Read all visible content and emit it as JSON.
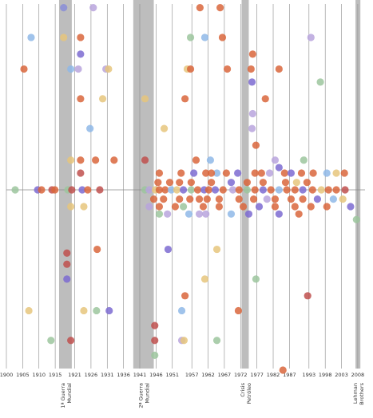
{
  "chart_data": {
    "type": "scatter",
    "xlim": [
      1900,
      2009
    ],
    "ylim": [
      -10,
      10
    ],
    "xticks": [
      1900,
      1905,
      1910,
      1915,
      1921,
      1926,
      1931,
      1936,
      1941,
      1946,
      1951,
      1957,
      1962,
      1967,
      1972,
      1977,
      1982,
      1987,
      1993,
      1998,
      2003,
      2008
    ],
    "grid": true,
    "baseline": 0,
    "bands": [
      {
        "from": 1916.2,
        "to": 1920.1,
        "label": [
          "1ª Guerra",
          "Mundial"
        ]
      },
      {
        "from": 1939.0,
        "to": 1945.3,
        "label": [
          "2ª Guerra",
          "Mundial"
        ]
      },
      {
        "from": 1972.3,
        "to": 1974.5,
        "label": [
          "Crisis",
          "Petróleo"
        ]
      },
      {
        "from": 2007.3,
        "to": 2008.8,
        "label": [
          "Lehman",
          "Brothers"
        ]
      }
    ],
    "points": [
      {
        "x": 1917.6,
        "y": 9.8,
        "color": "#8a8ed8"
      },
      {
        "x": 1926.7,
        "y": 9.8,
        "color": "#b8a4dd"
      },
      {
        "x": 1959.5,
        "y": 9.8,
        "color": "#d9663c"
      },
      {
        "x": 1965.7,
        "y": 9.8,
        "color": "#d9663c"
      },
      {
        "x": 1907.6,
        "y": 8.2,
        "color": "#8fb8e8"
      },
      {
        "x": 1917.6,
        "y": 8.2,
        "color": "#e6c57d"
      },
      {
        "x": 1922.8,
        "y": 8.2,
        "color": "#d9663c"
      },
      {
        "x": 1956.6,
        "y": 8.2,
        "color": "#9cc59e"
      },
      {
        "x": 1961.0,
        "y": 8.2,
        "color": "#8fb8e8"
      },
      {
        "x": 1966.4,
        "y": 8.2,
        "color": "#d9663c"
      },
      {
        "x": 1993.6,
        "y": 8.2,
        "color": "#b8a4dd"
      },
      {
        "x": 1922.8,
        "y": 7.3,
        "color": "#7d6bd1"
      },
      {
        "x": 1975.7,
        "y": 7.3,
        "color": "#d9663c"
      },
      {
        "x": 1905.4,
        "y": 6.5,
        "color": "#d9663c"
      },
      {
        "x": 1919.8,
        "y": 6.5,
        "color": "#8fb8e8"
      },
      {
        "x": 1922.1,
        "y": 6.5,
        "color": "#b8a4dd"
      },
      {
        "x": 1930.6,
        "y": 6.5,
        "color": "#b8a4dd"
      },
      {
        "x": 1931.4,
        "y": 6.5,
        "color": "#e6c57d"
      },
      {
        "x": 1955.6,
        "y": 6.5,
        "color": "#e6c57d"
      },
      {
        "x": 1956.6,
        "y": 6.5,
        "color": "#d9663c"
      },
      {
        "x": 1967.9,
        "y": 6.5,
        "color": "#d9663c"
      },
      {
        "x": 1975.2,
        "y": 6.5,
        "color": "#d9663c"
      },
      {
        "x": 1983.8,
        "y": 6.5,
        "color": "#d9663c"
      },
      {
        "x": 1975.5,
        "y": 5.8,
        "color": "#7d6bd1"
      },
      {
        "x": 1996.5,
        "y": 5.8,
        "color": "#9cc59e"
      },
      {
        "x": 1922.8,
        "y": 4.9,
        "color": "#d9663c"
      },
      {
        "x": 1929.6,
        "y": 4.9,
        "color": "#e6c57d"
      },
      {
        "x": 1942.6,
        "y": 4.9,
        "color": "#e6c57d"
      },
      {
        "x": 1954.9,
        "y": 4.9,
        "color": "#d9663c"
      },
      {
        "x": 1979.6,
        "y": 4.9,
        "color": "#d9663c"
      },
      {
        "x": 1975.7,
        "y": 4.1,
        "color": "#b8a4dd"
      },
      {
        "x": 1925.7,
        "y": 3.3,
        "color": "#8fb8e8"
      },
      {
        "x": 1948.5,
        "y": 3.3,
        "color": "#e6c57d"
      },
      {
        "x": 1975.5,
        "y": 3.3,
        "color": "#b8a4dd"
      },
      {
        "x": 1976.7,
        "y": 2.4,
        "color": "#d9663c"
      },
      {
        "x": 1919.8,
        "y": 1.6,
        "color": "#e6c57d"
      },
      {
        "x": 1922.8,
        "y": 1.6,
        "color": "#d9663c"
      },
      {
        "x": 1927.4,
        "y": 1.6,
        "color": "#d9663c"
      },
      {
        "x": 1933.1,
        "y": 1.6,
        "color": "#d9663c"
      },
      {
        "x": 1942.6,
        "y": 1.6,
        "color": "#c0504d"
      },
      {
        "x": 1958.3,
        "y": 1.6,
        "color": "#d9663c"
      },
      {
        "x": 1962.7,
        "y": 1.6,
        "color": "#8fb8e8"
      },
      {
        "x": 1982.6,
        "y": 1.6,
        "color": "#b8a4dd"
      },
      {
        "x": 1991.4,
        "y": 1.6,
        "color": "#9cc59e"
      },
      {
        "x": 1983.8,
        "y": 1.2,
        "color": "#7d6bd1"
      },
      {
        "x": 1922.8,
        "y": 0.9,
        "color": "#c0504d"
      },
      {
        "x": 1957.6,
        "y": 0.9,
        "color": "#7d6bd1"
      },
      {
        "x": 1964.7,
        "y": 0.9,
        "color": "#8fb8e8"
      },
      {
        "x": 1967.6,
        "y": 0.9,
        "color": "#d9663c"
      },
      {
        "x": 1971.1,
        "y": 0.9,
        "color": "#7d6bd1"
      },
      {
        "x": 1976.4,
        "y": 0.9,
        "color": "#d9663c"
      },
      {
        "x": 1978.4,
        "y": 0.9,
        "color": "#d9663c"
      },
      {
        "x": 1980.9,
        "y": 0.9,
        "color": "#b8a4dd"
      },
      {
        "x": 1985.5,
        "y": 0.9,
        "color": "#d9663c"
      },
      {
        "x": 1987.5,
        "y": 0.9,
        "color": "#7d6bd1"
      },
      {
        "x": 1990.7,
        "y": 0.9,
        "color": "#d9663c"
      },
      {
        "x": 1994.3,
        "y": 0.9,
        "color": "#d9663c"
      },
      {
        "x": 1998.5,
        "y": 0.9,
        "color": "#8fb8e8"
      },
      {
        "x": 2001.4,
        "y": 0.9,
        "color": "#e6c57d"
      },
      {
        "x": 2003.9,
        "y": 0.9,
        "color": "#d9663c"
      },
      {
        "x": 1961.3,
        "y": 0.9,
        "color": "#d9663c"
      },
      {
        "x": 1963.0,
        "y": 0.9,
        "color": "#d9663c"
      },
      {
        "x": 1947.0,
        "y": 0.9,
        "color": "#d9663c"
      },
      {
        "x": 1953.7,
        "y": 0.9,
        "color": "#d9663c"
      },
      {
        "x": 1946.6,
        "y": 0.4,
        "color": "#d9663c"
      },
      {
        "x": 1950.2,
        "y": 0.4,
        "color": "#d9663c"
      },
      {
        "x": 1953.2,
        "y": 0.4,
        "color": "#d9663c"
      },
      {
        "x": 1956.8,
        "y": 0.4,
        "color": "#d9663c"
      },
      {
        "x": 1963.0,
        "y": 0.4,
        "color": "#d9663c"
      },
      {
        "x": 1969.1,
        "y": 0.4,
        "color": "#7d6bd1"
      },
      {
        "x": 1974.0,
        "y": 0.4,
        "color": "#d9663c"
      },
      {
        "x": 1978.9,
        "y": 0.4,
        "color": "#d9663c"
      },
      {
        "x": 1985.8,
        "y": 0.4,
        "color": "#d9663c"
      },
      {
        "x": 1989.2,
        "y": 0.4,
        "color": "#e6c57d"
      },
      {
        "x": 1992.4,
        "y": 0.4,
        "color": "#d9663c"
      },
      {
        "x": 1902.7,
        "y": 0,
        "color": "#9cc59e"
      },
      {
        "x": 1909.6,
        "y": 0,
        "color": "#7d6bd1"
      },
      {
        "x": 1910.8,
        "y": 0,
        "color": "#d9663c"
      },
      {
        "x": 1914.0,
        "y": 0,
        "color": "#c0504d"
      },
      {
        "x": 1914.9,
        "y": 0,
        "color": "#d9663c"
      },
      {
        "x": 1918.9,
        "y": 0,
        "color": "#9cc59e"
      },
      {
        "x": 1920.1,
        "y": 0,
        "color": "#c0504d"
      },
      {
        "x": 1923.3,
        "y": 0,
        "color": "#7d6bd1"
      },
      {
        "x": 1925.0,
        "y": 0,
        "color": "#d9663c"
      },
      {
        "x": 1928.7,
        "y": 0,
        "color": "#c0504d"
      },
      {
        "x": 1942.6,
        "y": 0,
        "color": "#9cc59e"
      },
      {
        "x": 1943.9,
        "y": 0,
        "color": "#b8a4dd"
      },
      {
        "x": 1945.8,
        "y": 0,
        "color": "#e6c57d"
      },
      {
        "x": 1947.0,
        "y": 0,
        "color": "#d9663c"
      },
      {
        "x": 1948.8,
        "y": 0,
        "color": "#d9663c"
      },
      {
        "x": 1950.7,
        "y": 0,
        "color": "#8fb8e8"
      },
      {
        "x": 1952.4,
        "y": 0,
        "color": "#e6c57d"
      },
      {
        "x": 1954.4,
        "y": 0,
        "color": "#7d6bd1"
      },
      {
        "x": 1956.8,
        "y": 0,
        "color": "#9cc59e"
      },
      {
        "x": 1958.8,
        "y": 0,
        "color": "#d9663c"
      },
      {
        "x": 1960.8,
        "y": 0,
        "color": "#7d6bd1"
      },
      {
        "x": 1962.2,
        "y": 0,
        "color": "#d9663c"
      },
      {
        "x": 1964.2,
        "y": 0,
        "color": "#7d6bd1"
      },
      {
        "x": 1966.6,
        "y": 0,
        "color": "#d9663c"
      },
      {
        "x": 1969.6,
        "y": 0,
        "color": "#b8a4dd"
      },
      {
        "x": 1971.5,
        "y": 0,
        "color": "#d9663c"
      },
      {
        "x": 1974.0,
        "y": 0,
        "color": "#9cc59e"
      },
      {
        "x": 1976.4,
        "y": 0,
        "color": "#d9663c"
      },
      {
        "x": 1978.9,
        "y": 0,
        "color": "#7d6bd1"
      },
      {
        "x": 1981.3,
        "y": 0,
        "color": "#d9663c"
      },
      {
        "x": 1983.8,
        "y": 0,
        "color": "#8fb8e8"
      },
      {
        "x": 1986.2,
        "y": 0,
        "color": "#d9663c"
      },
      {
        "x": 1988.7,
        "y": 0,
        "color": "#d9663c"
      },
      {
        "x": 1991.1,
        "y": 0,
        "color": "#7d6bd1"
      },
      {
        "x": 1994.1,
        "y": 0,
        "color": "#d9663c"
      },
      {
        "x": 1996.8,
        "y": 0,
        "color": "#e6c57d"
      },
      {
        "x": 1999.0,
        "y": 0,
        "color": "#d9663c"
      },
      {
        "x": 2001.4,
        "y": 0,
        "color": "#d9663c"
      },
      {
        "x": 2004.1,
        "y": 0,
        "color": "#c0504d"
      },
      {
        "x": 1945.3,
        "y": -0.5,
        "color": "#d9663c"
      },
      {
        "x": 1948.3,
        "y": -0.5,
        "color": "#d9663c"
      },
      {
        "x": 1953.2,
        "y": -0.5,
        "color": "#d9663c"
      },
      {
        "x": 1956.4,
        "y": -0.5,
        "color": "#d9663c"
      },
      {
        "x": 1959.3,
        "y": -0.5,
        "color": "#d9663c"
      },
      {
        "x": 1961.7,
        "y": -0.5,
        "color": "#d9663c"
      },
      {
        "x": 1965.4,
        "y": -0.5,
        "color": "#d9663c"
      },
      {
        "x": 1971.5,
        "y": -0.5,
        "color": "#d9663c"
      },
      {
        "x": 1976.0,
        "y": -0.5,
        "color": "#d9663c"
      },
      {
        "x": 1980.1,
        "y": -0.5,
        "color": "#b8a4dd"
      },
      {
        "x": 1982.6,
        "y": -0.5,
        "color": "#d9663c"
      },
      {
        "x": 1987.5,
        "y": -0.5,
        "color": "#d9663c"
      },
      {
        "x": 1991.1,
        "y": -0.5,
        "color": "#d9663c"
      },
      {
        "x": 1995.6,
        "y": -0.5,
        "color": "#7d6bd1"
      },
      {
        "x": 2000.5,
        "y": -0.5,
        "color": "#8fb8e8"
      },
      {
        "x": 2003.4,
        "y": -0.5,
        "color": "#e6c57d"
      },
      {
        "x": 1943.9,
        "y": -0.9,
        "color": "#b8a4dd"
      },
      {
        "x": 1947.0,
        "y": -0.9,
        "color": "#d9663c"
      },
      {
        "x": 1951.9,
        "y": -0.9,
        "color": "#d9663c"
      },
      {
        "x": 1954.4,
        "y": -0.9,
        "color": "#9cc59e"
      },
      {
        "x": 1960.5,
        "y": -0.9,
        "color": "#d9663c"
      },
      {
        "x": 1965.4,
        "y": -0.9,
        "color": "#d9663c"
      },
      {
        "x": 1972.8,
        "y": -0.9,
        "color": "#d9663c"
      },
      {
        "x": 1977.7,
        "y": -0.9,
        "color": "#7d6bd1"
      },
      {
        "x": 1982.6,
        "y": -0.9,
        "color": "#d9663c"
      },
      {
        "x": 1988.7,
        "y": -0.9,
        "color": "#d9663c"
      },
      {
        "x": 1993.6,
        "y": -0.9,
        "color": "#d9663c"
      },
      {
        "x": 1998.5,
        "y": -0.9,
        "color": "#d9663c"
      },
      {
        "x": 2005.8,
        "y": -0.9,
        "color": "#7d6bd1"
      },
      {
        "x": 1923.8,
        "y": -0.9,
        "color": "#e6c57d"
      },
      {
        "x": 1919.8,
        "y": -0.9,
        "color": "#e6c57d"
      },
      {
        "x": 1947.0,
        "y": -1.3,
        "color": "#9cc59e"
      },
      {
        "x": 1949.5,
        "y": -1.3,
        "color": "#b8a4dd"
      },
      {
        "x": 1956.1,
        "y": -1.3,
        "color": "#8fb8e8"
      },
      {
        "x": 1959.3,
        "y": -1.3,
        "color": "#b8a4dd"
      },
      {
        "x": 1961.3,
        "y": -1.3,
        "color": "#b8a4dd"
      },
      {
        "x": 1969.1,
        "y": -1.3,
        "color": "#8fb8e8"
      },
      {
        "x": 1974.5,
        "y": -1.3,
        "color": "#7d6bd1"
      },
      {
        "x": 1983.8,
        "y": -1.3,
        "color": "#7d6bd1"
      },
      {
        "x": 1989.9,
        "y": -1.3,
        "color": "#d9663c"
      },
      {
        "x": 2007.6,
        "y": -1.6,
        "color": "#9cc59e"
      },
      {
        "x": 1918.6,
        "y": -3.4,
        "color": "#c0504d"
      },
      {
        "x": 1927.9,
        "y": -3.2,
        "color": "#d9663c"
      },
      {
        "x": 1949.7,
        "y": -3.2,
        "color": "#7d6bd1"
      },
      {
        "x": 1964.7,
        "y": -3.2,
        "color": "#e6c57d"
      },
      {
        "x": 1918.6,
        "y": -4.0,
        "color": "#c0504d"
      },
      {
        "x": 1918.6,
        "y": -4.8,
        "color": "#7d6bd1"
      },
      {
        "x": 1961.0,
        "y": -4.8,
        "color": "#e6c57d"
      },
      {
        "x": 1976.7,
        "y": -4.8,
        "color": "#9cc59e"
      },
      {
        "x": 1954.9,
        "y": -5.7,
        "color": "#d9663c"
      },
      {
        "x": 1992.6,
        "y": -5.7,
        "color": "#c0504d"
      },
      {
        "x": 1906.9,
        "y": -6.5,
        "color": "#e6c57d"
      },
      {
        "x": 1923.8,
        "y": -6.5,
        "color": "#e6c57d"
      },
      {
        "x": 1927.7,
        "y": -6.5,
        "color": "#9cc59e"
      },
      {
        "x": 1931.6,
        "y": -6.5,
        "color": "#7d6bd1"
      },
      {
        "x": 1953.9,
        "y": -6.5,
        "color": "#8fb8e8"
      },
      {
        "x": 1971.3,
        "y": -6.5,
        "color": "#d9663c"
      },
      {
        "x": 1945.6,
        "y": -7.3,
        "color": "#c0504d"
      },
      {
        "x": 1913.7,
        "y": -8.1,
        "color": "#9cc59e"
      },
      {
        "x": 1919.8,
        "y": -8.1,
        "color": "#c0504d"
      },
      {
        "x": 1945.6,
        "y": -8.1,
        "color": "#c0504d"
      },
      {
        "x": 1953.9,
        "y": -8.1,
        "color": "#b8a4dd"
      },
      {
        "x": 1954.6,
        "y": -8.1,
        "color": "#e6c57d"
      },
      {
        "x": 1964.7,
        "y": -8.1,
        "color": "#9cc59e"
      },
      {
        "x": 1945.6,
        "y": -8.9,
        "color": "#9cc59e"
      },
      {
        "x": 1985.0,
        "y": -9.7,
        "color": "#d9663c"
      }
    ]
  }
}
